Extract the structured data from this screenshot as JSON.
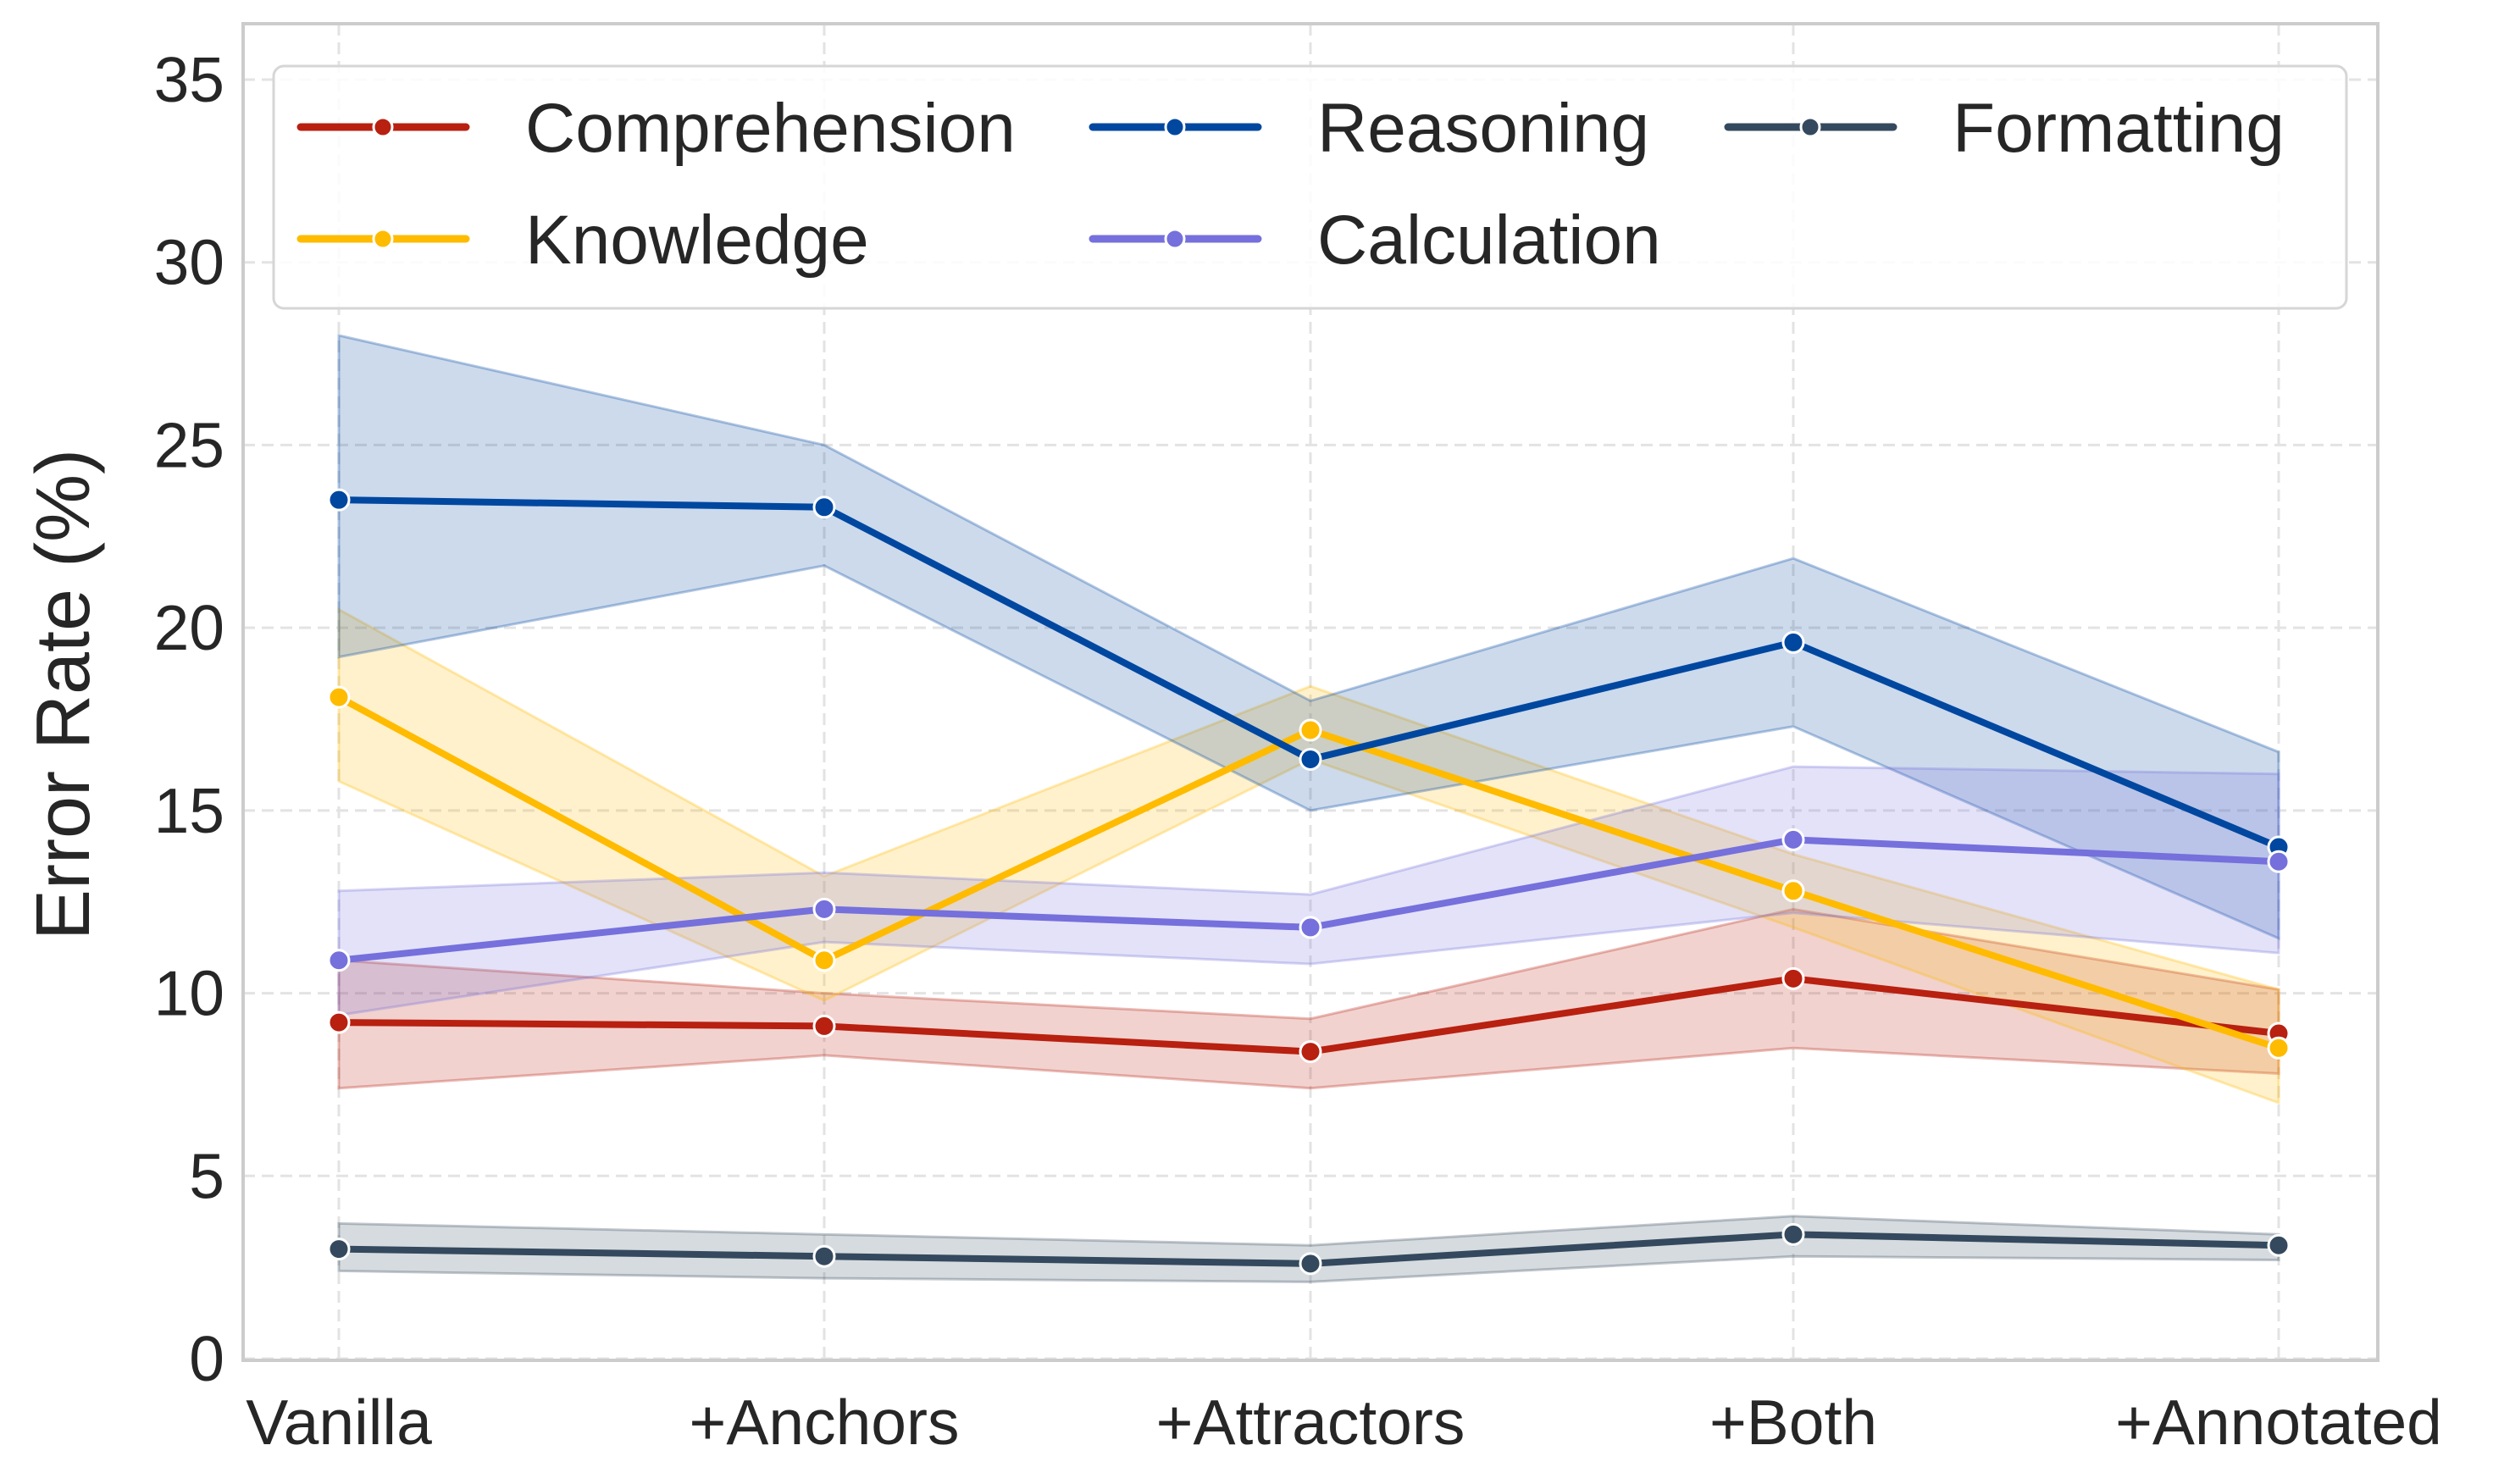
{
  "chart_data": {
    "type": "line",
    "title": "",
    "xlabel": "",
    "ylabel": "Error Rate (%)",
    "categories": [
      "Vanilla",
      "+Anchors",
      "+Attractors",
      "+Both",
      "+Annotated"
    ],
    "ylim": [
      0,
      36.5
    ],
    "yticks": [
      0,
      5,
      10,
      15,
      20,
      25,
      30,
      35
    ],
    "grid": true,
    "legend": {
      "placement": "top",
      "columns": 3
    },
    "series": [
      {
        "name": "Comprehension",
        "color": "#b82010",
        "values": [
          9.2,
          9.1,
          8.4,
          10.4,
          8.9
        ],
        "upper": [
          10.9,
          10.0,
          9.3,
          12.3,
          10.1
        ],
        "lower": [
          7.4,
          8.3,
          7.4,
          8.5,
          7.8
        ]
      },
      {
        "name": "Knowledge",
        "color": "#ffbb00",
        "values": [
          18.1,
          10.9,
          17.2,
          12.8,
          8.5
        ],
        "upper": [
          20.5,
          13.2,
          18.4,
          13.8,
          10.1
        ],
        "lower": [
          15.8,
          9.8,
          16.4,
          11.8,
          7.0
        ]
      },
      {
        "name": "Reasoning",
        "color": "#0047a0",
        "values": [
          23.5,
          23.3,
          16.4,
          19.6,
          14.0
        ],
        "upper": [
          28.0,
          25.0,
          18.0,
          21.9,
          16.6
        ],
        "lower": [
          19.2,
          21.7,
          15.0,
          17.3,
          11.5
        ]
      },
      {
        "name": "Calculation",
        "color": "#7570dc",
        "values": [
          10.9,
          12.3,
          11.8,
          14.2,
          13.6
        ],
        "upper": [
          12.8,
          13.3,
          12.7,
          16.2,
          16.0
        ],
        "lower": [
          9.4,
          11.4,
          10.8,
          12.2,
          11.1
        ]
      },
      {
        "name": "Formatting",
        "color": "#34495e",
        "values": [
          3.0,
          2.8,
          2.6,
          3.4,
          3.1
        ],
        "upper": [
          3.7,
          3.4,
          3.1,
          3.9,
          3.4
        ],
        "lower": [
          2.4,
          2.2,
          2.1,
          2.8,
          2.7
        ]
      }
    ]
  }
}
